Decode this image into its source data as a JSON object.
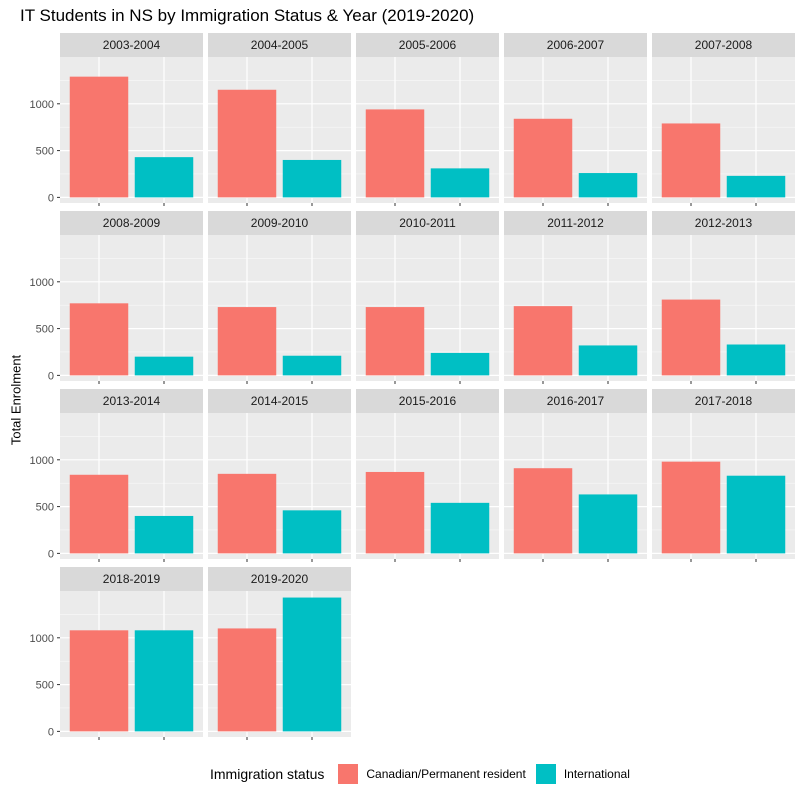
{
  "chart_data": {
    "type": "bar",
    "title": "IT Students in NS by Immigration Status & Year (2019-2020)",
    "ylabel": "Total Enrolment",
    "xlabel": "",
    "ylim": [
      0,
      1500
    ],
    "yticks": [
      0,
      500,
      1000
    ],
    "grid": true,
    "facet_by": "year",
    "legend": {
      "title": "Immigration status",
      "position": "bottom"
    },
    "series": [
      {
        "name": "Canadian/Permanent resident",
        "color": "#F8766D"
      },
      {
        "name": "International",
        "color": "#00BFC4"
      }
    ],
    "panels": [
      {
        "label": "2003-2004",
        "values": [
          1290,
          430
        ]
      },
      {
        "label": "2004-2005",
        "values": [
          1150,
          400
        ]
      },
      {
        "label": "2005-2006",
        "values": [
          940,
          310
        ]
      },
      {
        "label": "2006-2007",
        "values": [
          840,
          260
        ]
      },
      {
        "label": "2007-2008",
        "values": [
          790,
          230
        ]
      },
      {
        "label": "2008-2009",
        "values": [
          770,
          200
        ]
      },
      {
        "label": "2009-2010",
        "values": [
          730,
          210
        ]
      },
      {
        "label": "2010-2011",
        "values": [
          730,
          240
        ]
      },
      {
        "label": "2011-2012",
        "values": [
          740,
          320
        ]
      },
      {
        "label": "2012-2013",
        "values": [
          810,
          330
        ]
      },
      {
        "label": "2013-2014",
        "values": [
          840,
          400
        ]
      },
      {
        "label": "2014-2015",
        "values": [
          850,
          460
        ]
      },
      {
        "label": "2015-2016",
        "values": [
          870,
          540
        ]
      },
      {
        "label": "2016-2017",
        "values": [
          910,
          630
        ]
      },
      {
        "label": "2017-2018",
        "values": [
          980,
          830
        ]
      },
      {
        "label": "2018-2019",
        "values": [
          1080,
          1080
        ]
      },
      {
        "label": "2019-2020",
        "values": [
          1100,
          1430
        ]
      }
    ]
  }
}
